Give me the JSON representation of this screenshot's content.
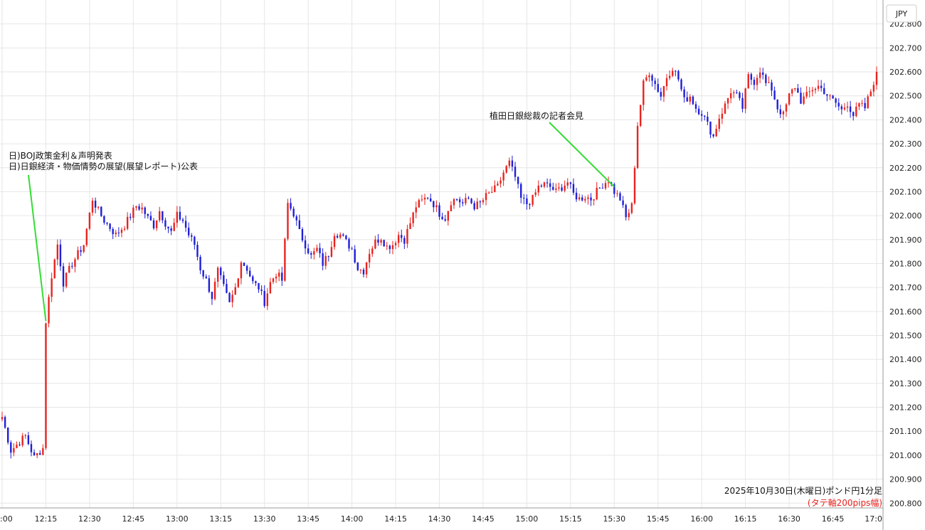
{
  "chart_data": {
    "type": "candlestick",
    "currency_label": "JPY",
    "ylim": [
      200.78,
      202.9
    ],
    "y_ticks": [
      "202.800",
      "202.700",
      "202.600",
      "202.500",
      "202.400",
      "202.300",
      "202.200",
      "202.100",
      "202.000",
      "201.900",
      "201.800",
      "201.700",
      "201.600",
      "201.500",
      "201.400",
      "201.300",
      "201.200",
      "201.100",
      "201.000",
      "200.900",
      "200.800"
    ],
    "x_ticks": [
      ":00",
      "12:15",
      "12:30",
      "12:45",
      "13:00",
      "13:15",
      "13:30",
      "13:45",
      "14:00",
      "14:15",
      "14:30",
      "14:45",
      "15:00",
      "15:15",
      "15:30",
      "15:45",
      "16:00",
      "16:15",
      "16:30",
      "16:45",
      "17:0"
    ],
    "grid": true,
    "up_color": "#e8241f",
    "down_color": "#1f1fd6",
    "annotations": [
      {
        "lines": [
          "日)BOJ政策金利＆声明発表",
          "日)日銀経済・物価情勢の展望(展望レポート)公表"
        ],
        "time": "12:15",
        "price": 201.56
      },
      {
        "lines": [
          "植田日銀総裁の記者会見"
        ],
        "time": "15:30",
        "price": 202.12
      }
    ],
    "caption": {
      "line1": "2025年10月30日(木曜日)ポンド円1分足",
      "line2": "(タテ軸200pips幅)",
      "line2_color": "#e8241f"
    },
    "price_path": [
      [
        "12:00",
        201.16
      ],
      [
        "12:03",
        201.02
      ],
      [
        "12:08",
        201.08
      ],
      [
        "12:11",
        200.99
      ],
      [
        "12:14",
        201.03
      ],
      [
        "12:15",
        201.56
      ],
      [
        "12:17",
        201.75
      ],
      [
        "12:19",
        201.88
      ],
      [
        "12:21",
        201.72
      ],
      [
        "12:24",
        201.8
      ],
      [
        "12:28",
        201.88
      ],
      [
        "12:31",
        202.07
      ],
      [
        "12:33",
        202.02
      ],
      [
        "12:35",
        201.98
      ],
      [
        "12:37",
        201.95
      ],
      [
        "12:39",
        201.92
      ],
      [
        "12:42",
        201.96
      ],
      [
        "12:46",
        202.04
      ],
      [
        "12:48",
        202.03
      ],
      [
        "12:50",
        201.99
      ],
      [
        "12:52",
        201.96
      ],
      [
        "12:54",
        202.02
      ],
      [
        "12:56",
        201.97
      ],
      [
        "12:58",
        201.93
      ],
      [
        "13:00",
        202.0
      ],
      [
        "13:02",
        201.98
      ],
      [
        "13:04",
        201.92
      ],
      [
        "13:06",
        201.88
      ],
      [
        "13:08",
        201.78
      ],
      [
        "13:10",
        201.73
      ],
      [
        "13:12",
        201.66
      ],
      [
        "13:14",
        201.77
      ],
      [
        "13:16",
        201.7
      ],
      [
        "13:18",
        201.63
      ],
      [
        "13:20",
        201.7
      ],
      [
        "13:22",
        201.81
      ],
      [
        "13:24",
        201.78
      ],
      [
        "13:26",
        201.72
      ],
      [
        "13:28",
        201.7
      ],
      [
        "13:30",
        201.64
      ],
      [
        "13:32",
        201.72
      ],
      [
        "13:34",
        201.76
      ],
      [
        "13:36",
        201.73
      ],
      [
        "13:38",
        202.05
      ],
      [
        "13:40",
        202.01
      ],
      [
        "13:42",
        201.93
      ],
      [
        "13:44",
        201.88
      ],
      [
        "13:46",
        201.83
      ],
      [
        "13:48",
        201.86
      ],
      [
        "13:50",
        201.8
      ],
      [
        "13:52",
        201.84
      ],
      [
        "13:54",
        201.93
      ],
      [
        "13:56",
        201.92
      ],
      [
        "13:58",
        201.89
      ],
      [
        "14:00",
        201.86
      ],
      [
        "14:02",
        201.78
      ],
      [
        "14:04",
        201.77
      ],
      [
        "14:06",
        201.85
      ],
      [
        "14:08",
        201.89
      ],
      [
        "14:10",
        201.91
      ],
      [
        "14:12",
        201.87
      ],
      [
        "14:14",
        201.88
      ],
      [
        "14:16",
        201.92
      ],
      [
        "14:18",
        201.9
      ],
      [
        "14:20",
        201.97
      ],
      [
        "14:22",
        202.04
      ],
      [
        "14:24",
        202.06
      ],
      [
        "14:26",
        202.08
      ],
      [
        "14:28",
        202.05
      ],
      [
        "14:30",
        202.01
      ],
      [
        "14:32",
        201.99
      ],
      [
        "14:34",
        202.06
      ],
      [
        "14:36",
        202.07
      ],
      [
        "14:38",
        202.05
      ],
      [
        "14:40",
        202.07
      ],
      [
        "14:42",
        202.04
      ],
      [
        "14:44",
        202.05
      ],
      [
        "14:46",
        202.08
      ],
      [
        "14:48",
        202.1
      ],
      [
        "14:50",
        202.12
      ],
      [
        "14:52",
        202.18
      ],
      [
        "14:54",
        202.22
      ],
      [
        "14:56",
        202.16
      ],
      [
        "14:58",
        202.07
      ],
      [
        "15:00",
        202.05
      ],
      [
        "15:02",
        202.07
      ],
      [
        "15:04",
        202.12
      ],
      [
        "15:06",
        202.13
      ],
      [
        "15:08",
        202.12
      ],
      [
        "15:10",
        202.1
      ],
      [
        "15:12",
        202.12
      ],
      [
        "15:14",
        202.14
      ],
      [
        "15:16",
        202.09
      ],
      [
        "15:18",
        202.07
      ],
      [
        "15:20",
        202.08
      ],
      [
        "15:22",
        202.07
      ],
      [
        "15:24",
        202.1
      ],
      [
        "15:26",
        202.13
      ],
      [
        "15:28",
        202.15
      ],
      [
        "15:30",
        202.1
      ],
      [
        "15:32",
        202.07
      ],
      [
        "15:34",
        201.99
      ],
      [
        "15:36",
        202.04
      ],
      [
        "15:38",
        202.38
      ],
      [
        "15:40",
        202.55
      ],
      [
        "15:42",
        202.6
      ],
      [
        "15:44",
        202.55
      ],
      [
        "15:46",
        202.5
      ],
      [
        "15:48",
        202.58
      ],
      [
        "15:50",
        202.62
      ],
      [
        "15:52",
        202.57
      ],
      [
        "15:54",
        202.48
      ],
      [
        "15:56",
        202.5
      ],
      [
        "15:58",
        202.45
      ],
      [
        "16:00",
        202.43
      ],
      [
        "16:02",
        202.38
      ],
      [
        "16:04",
        202.33
      ],
      [
        "16:06",
        202.41
      ],
      [
        "16:08",
        202.46
      ],
      [
        "16:10",
        202.52
      ],
      [
        "16:12",
        202.5
      ],
      [
        "16:14",
        202.45
      ],
      [
        "16:16",
        202.58
      ],
      [
        "16:18",
        202.56
      ],
      [
        "16:20",
        202.61
      ],
      [
        "16:22",
        202.55
      ],
      [
        "16:24",
        202.53
      ],
      [
        "16:26",
        202.45
      ],
      [
        "16:28",
        202.42
      ],
      [
        "16:30",
        202.5
      ],
      [
        "16:32",
        202.54
      ],
      [
        "16:34",
        202.48
      ],
      [
        "16:36",
        202.5
      ],
      [
        "16:38",
        202.53
      ],
      [
        "16:40",
        202.54
      ],
      [
        "16:42",
        202.52
      ],
      [
        "16:44",
        202.49
      ],
      [
        "16:46",
        202.47
      ],
      [
        "16:48",
        202.44
      ],
      [
        "16:50",
        202.47
      ],
      [
        "16:52",
        202.42
      ],
      [
        "16:54",
        202.46
      ],
      [
        "16:56",
        202.45
      ],
      [
        "16:58",
        202.52
      ],
      [
        "17:00",
        202.6
      ]
    ]
  }
}
